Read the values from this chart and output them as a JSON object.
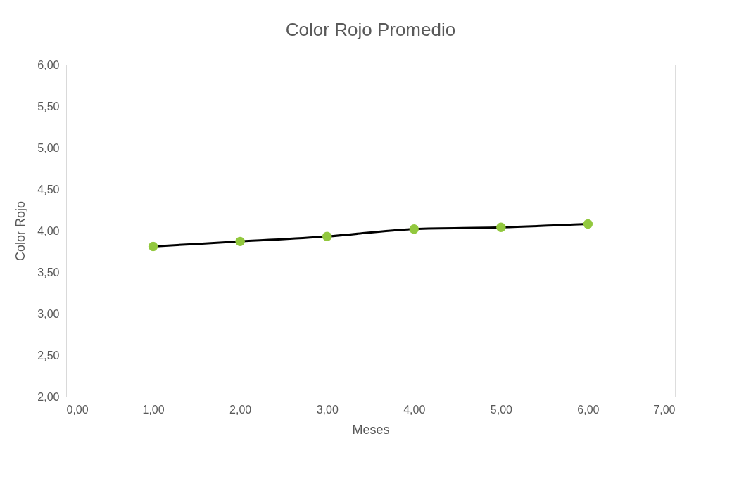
{
  "chart_data": {
    "type": "line",
    "title": "Color Rojo Promedio",
    "xlabel": "Meses",
    "ylabel": "Color Rojo",
    "x": [
      1,
      2,
      3,
      4,
      5,
      6
    ],
    "series": [
      {
        "color": "#000000",
        "colors": [
          "#92c83e",
          "#92c83e",
          "#92c83e",
          "#92c83e",
          "#92c83e",
          "#92c83e"
        ],
        "values": [
          3.81,
          3.87,
          3.93,
          4.02,
          4.04,
          4.08
        ]
      }
    ],
    "xlim": [
      0,
      7
    ],
    "ylim": [
      2,
      6
    ],
    "xticks": [
      {
        "value": 0,
        "label": "0,00"
      },
      {
        "value": 1,
        "label": "1,00"
      },
      {
        "value": 2,
        "label": "2,00"
      },
      {
        "value": 3,
        "label": "3,00"
      },
      {
        "value": 4,
        "label": "4,00"
      },
      {
        "value": 5,
        "label": "5,00"
      },
      {
        "value": 6,
        "label": "6,00"
      },
      {
        "value": 7,
        "label": "7,00"
      }
    ],
    "yticks": [
      {
        "value": 2,
        "label": "2,00"
      },
      {
        "value": 2.5,
        "label": "2,50"
      },
      {
        "value": 3,
        "label": "3,00"
      },
      {
        "value": 3.5,
        "label": "3,50"
      },
      {
        "value": 4,
        "label": "4,00"
      },
      {
        "value": 4.5,
        "label": "4,50"
      },
      {
        "value": 5,
        "label": "5,00"
      },
      {
        "value": 5.5,
        "label": "5,50"
      },
      {
        "value": 6,
        "label": "6,00"
      }
    ],
    "marker": "circle",
    "grid": false
  }
}
